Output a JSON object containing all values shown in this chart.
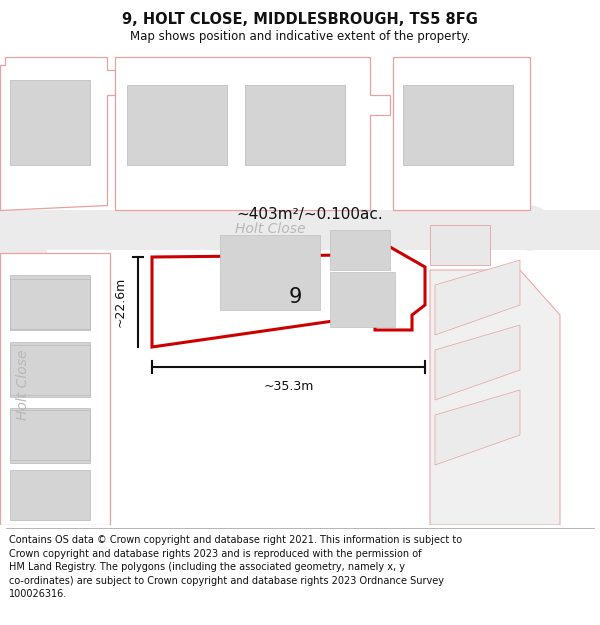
{
  "title": "9, HOLT CLOSE, MIDDLESBROUGH, TS5 8FG",
  "subtitle": "Map shows position and indicative extent of the property.",
  "footer": "Contains OS data © Crown copyright and database right 2021. This information is subject to\nCrown copyright and database rights 2023 and is reproduced with the permission of\nHM Land Registry. The polygons (including the associated geometry, namely x, y\nco-ordinates) are subject to Crown copyright and database rights 2023 Ordnance Survey\n100026316.",
  "area_label": "~403m²/~0.100ac.",
  "width_label": "~35.3m",
  "height_label": "~22.6m",
  "number_label": "9",
  "street_label_h": "Holt Close",
  "street_label_v": "Holt Close",
  "bg_color": "#ffffff",
  "light_red": "#e8a0a0",
  "road_fill": "#ebebeb",
  "building_fill": "#d4d4d4",
  "building_edge": "#b8b8b8",
  "plot_fill": "#ffffff",
  "plot_edge": "#cc0000",
  "plot_edge_width": 2.2,
  "dim_color": "#111111",
  "title_fontsize": 10.5,
  "subtitle_fontsize": 8.5,
  "footer_fontsize": 7.0,
  "street_fontsize": 10,
  "area_fontsize": 11,
  "dim_fontsize": 9,
  "num_fontsize": 15
}
